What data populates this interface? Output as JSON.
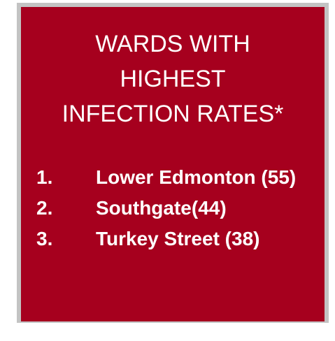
{
  "title_lines": [
    "WARDS WITH",
    "HIGHEST",
    "INFECTION RATES*"
  ],
  "items": [
    {
      "number": "1.",
      "text": "Lower Edmonton (55)"
    },
    {
      "number": "2.",
      "text": "Southgate(44)"
    },
    {
      "number": "3.",
      "text": "Turkey Street (38)"
    }
  ]
}
